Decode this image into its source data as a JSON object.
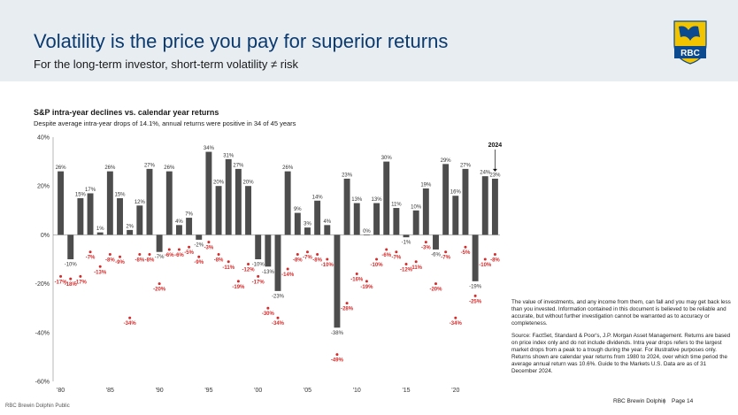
{
  "header": {
    "title": "Volatility is the price you pay for superior returns",
    "subtitle": "For the long-term investor, short-term volatility ≠ risk",
    "logo_text": "RBC"
  },
  "chart_data": {
    "type": "bar",
    "title": "S&P intra-year declines vs. calendar year returns",
    "subtitle": "Despite average intra-year drops of 14.1%, annual returns were positive in 34 of 45 years",
    "highlight_label": "2024",
    "x": [
      1980,
      1981,
      1982,
      1983,
      1984,
      1985,
      1986,
      1987,
      1988,
      1989,
      1990,
      1991,
      1992,
      1993,
      1994,
      1995,
      1996,
      1997,
      1998,
      1999,
      2000,
      2001,
      2002,
      2003,
      2004,
      2005,
      2006,
      2007,
      2008,
      2009,
      2010,
      2011,
      2012,
      2013,
      2014,
      2015,
      2016,
      2017,
      2018,
      2019,
      2020,
      2021,
      2022,
      2023,
      2024
    ],
    "x_tick_labels": [
      "'80",
      "'85",
      "'90",
      "'95",
      "'00",
      "'05",
      "'10",
      "'15",
      "'20"
    ],
    "x_tick_years": [
      1980,
      1985,
      1990,
      1995,
      2000,
      2005,
      2010,
      2015,
      2020
    ],
    "series": [
      {
        "name": "",
        "mark": "bar",
        "color": "#4d4d4d",
        "values": [
          26,
          -10,
          15,
          17,
          1,
          26,
          15,
          2,
          12,
          27,
          -7,
          26,
          4,
          7,
          -2,
          34,
          20,
          31,
          27,
          20,
          -10,
          -13,
          -23,
          26,
          9,
          3,
          14,
          4,
          -38,
          23,
          13,
          0,
          13,
          30,
          11,
          -1,
          10,
          19,
          -6,
          29,
          16,
          27,
          -19,
          24,
          23
        ],
        "labels": [
          "26%",
          "-10%",
          "15%",
          "17%",
          "1%",
          "26%",
          "15%",
          "2%",
          "12%",
          "27%",
          "-7%",
          "26%",
          "4%",
          "7%",
          "-2%",
          "34%",
          "20%",
          "31%",
          "27%",
          "20%",
          "-10%",
          "-13%",
          "-23%",
          "26%",
          "9%",
          "3%",
          "14%",
          "4%",
          "-38%",
          "23%",
          "13%",
          "0%",
          "13%",
          "30%",
          "11%",
          "-1%",
          "10%",
          "19%",
          "-6%",
          "29%",
          "16%",
          "27%",
          "-19%",
          "24%",
          "23%"
        ]
      },
      {
        "name": "",
        "mark": "dot",
        "color": "#d62b2b",
        "values": [
          -17,
          -18,
          -17,
          -7,
          -13,
          -8,
          -9,
          -34,
          -8,
          -8,
          -20,
          -6,
          -6,
          -5,
          -9,
          -3,
          -8,
          -11,
          -19,
          -12,
          -17,
          -30,
          -34,
          -14,
          -8,
          -7,
          -8,
          -10,
          -49,
          -28,
          -16,
          -19,
          -10,
          -6,
          -7,
          -12,
          -11,
          -3,
          -20,
          -7,
          -34,
          -5,
          -25,
          -10,
          -8
        ],
        "labels": [
          "-17%",
          "-18%",
          "-17%",
          "-7%",
          "-13%",
          "-8%",
          "-9%",
          "-34%",
          "-8%",
          "-8%",
          "-20%",
          "-6%",
          "-6%",
          "-5%",
          "-9%",
          "-3%",
          "-8%",
          "-11%",
          "-19%",
          "-12%",
          "-17%",
          "-30%",
          "-34%",
          "-14%",
          "-8%",
          "-7%",
          "-8%",
          "-10%",
          "-49%",
          "-28%",
          "-16%",
          "-19%",
          "-10%",
          "-6%",
          "-7%",
          "-12%",
          "-11%",
          "-3%",
          "-20%",
          "-7%",
          "-34%",
          "-5%",
          "-25%",
          "-10%",
          "-8%"
        ]
      }
    ],
    "ylim": [
      -60,
      40
    ],
    "y_ticks": [
      40,
      20,
      0,
      -20,
      -40,
      -60
    ],
    "y_tick_labels": [
      "40%",
      "20%",
      "0%",
      "-20%",
      "-40%",
      "-60%"
    ],
    "grid": false,
    "legend": "none"
  },
  "notes": [
    "The value of investments, and any income from them, can fall and you may get back less than you invested. Information contained in this document is believed to be reliable and accurate, but without further investigation cannot be warranted as to accuracy or completeness.",
    "Source: FactSet, Standard & Poor's, J.P. Morgan Asset Management. Returns are based on price index only and do not include dividends. Intra year drops refers to the largest market drops from a peak to a trough during the year. For illustrative purposes only. Returns shown are calendar year returns from 1980 to 2024, over which time period the average annual return was 10.6%. Guide to the Markets U.S. Data are as of 31 December 2024."
  ],
  "footer": {
    "classification": "RBC Brewin Dolphin Public",
    "company": "RBC Brewin Dolphin",
    "separator": "|",
    "page": "Page 14"
  }
}
